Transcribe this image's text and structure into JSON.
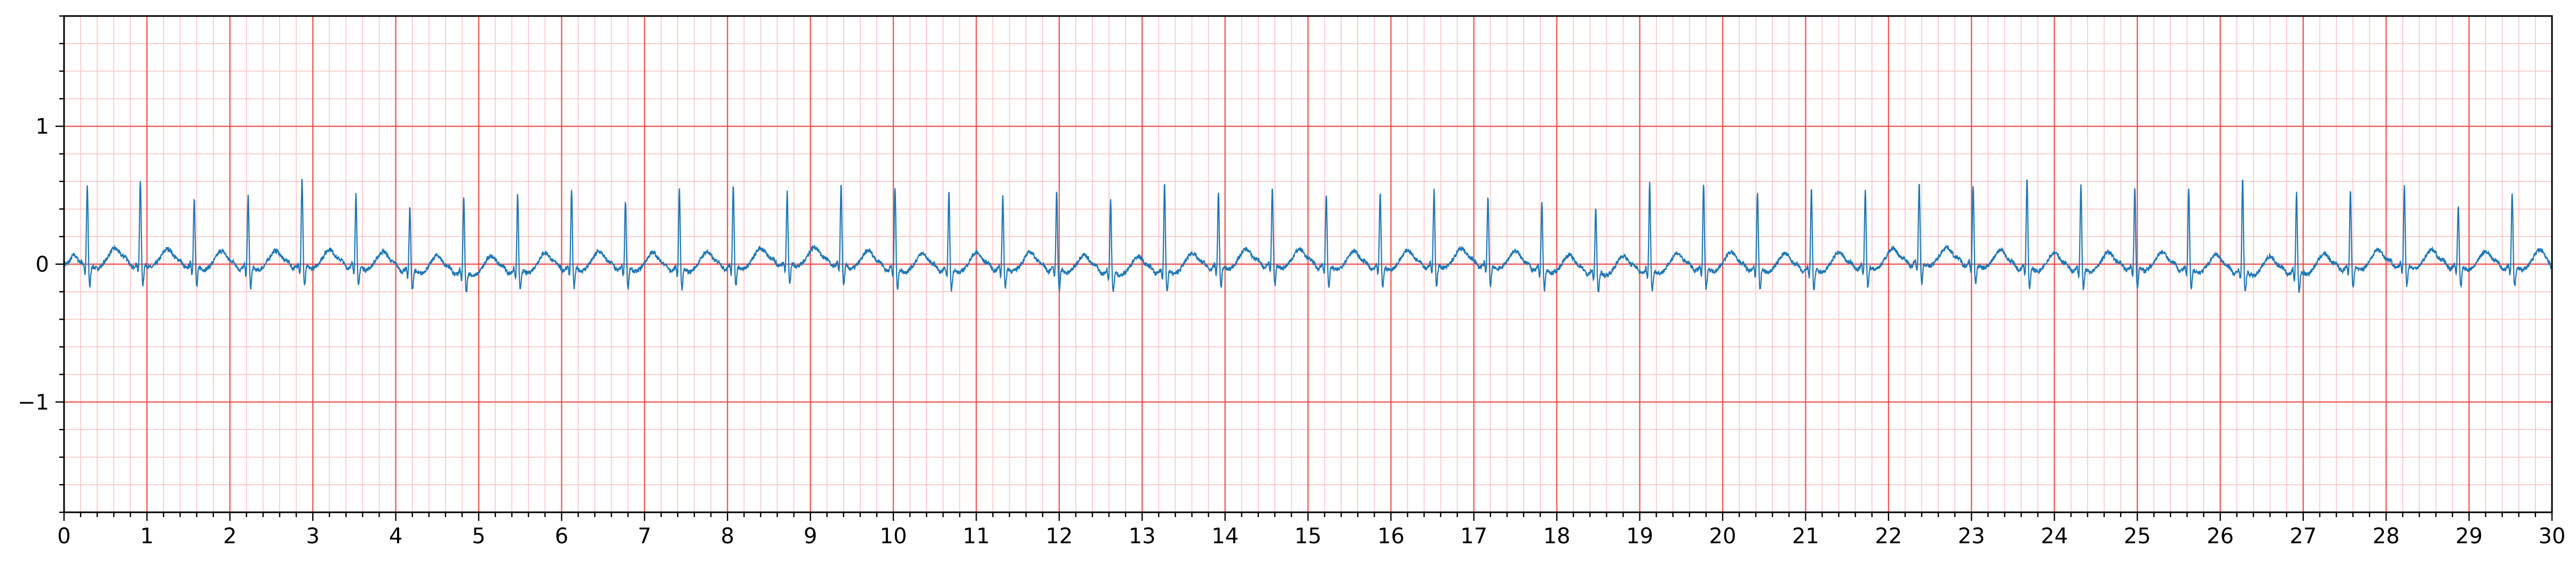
{
  "chart_data": {
    "type": "line",
    "title": "",
    "xlabel": "",
    "ylabel": "",
    "xlim": [
      0,
      30
    ],
    "ylim": [
      -1.8,
      1.8
    ],
    "x_ticks": [
      "0",
      "1",
      "2",
      "3",
      "4",
      "5",
      "6",
      "7",
      "8",
      "9",
      "10",
      "11",
      "12",
      "13",
      "14",
      "15",
      "16",
      "17",
      "18",
      "19",
      "20",
      "21",
      "22",
      "23",
      "24",
      "25",
      "26",
      "27",
      "28",
      "29",
      "30"
    ],
    "y_ticks": [
      "−1",
      "0",
      "1"
    ],
    "y_tick_values": [
      -1,
      0,
      1
    ],
    "grid": {
      "major_x_step": 1,
      "minor_x_step": 0.2,
      "major_y_step": 1,
      "minor_y_step": 0.2,
      "major_color": "#ef4444",
      "minor_color": "#fbc4c4"
    },
    "line_color": "#1f77b4",
    "series": [
      {
        "beats_s": [
          0.28,
          0.92,
          1.57,
          2.22,
          2.87,
          3.52,
          4.17,
          4.82,
          5.47,
          6.12,
          6.77,
          7.42,
          8.07,
          8.72,
          9.37,
          10.02,
          10.67,
          11.32,
          11.97,
          12.62,
          13.27,
          13.92,
          14.57,
          15.22,
          15.87,
          16.52,
          17.17,
          17.82,
          18.47,
          19.12,
          19.77,
          20.42,
          21.07,
          21.72,
          22.37,
          23.02,
          23.67,
          24.32,
          24.97,
          25.62,
          26.27,
          26.92,
          27.57,
          28.22,
          28.87,
          29.52
        ],
        "r_peak_amplitude": [
          0.57,
          0.6,
          0.49,
          0.51,
          0.62,
          0.51,
          0.44,
          0.54,
          0.54,
          0.55,
          0.48,
          0.56,
          0.58,
          0.5,
          0.57,
          0.58,
          0.55,
          0.51,
          0.56,
          0.51,
          0.63,
          0.52,
          0.54,
          0.51,
          0.53,
          0.53,
          0.48,
          0.48,
          0.46,
          0.62,
          0.6,
          0.55,
          0.57,
          0.54,
          0.58,
          0.56,
          0.65,
          0.6,
          0.57,
          0.57,
          0.66,
          0.56,
          0.55,
          0.56,
          0.43,
          0.53
        ],
        "baseline_range": [
          -0.15,
          0.15
        ]
      }
    ]
  }
}
